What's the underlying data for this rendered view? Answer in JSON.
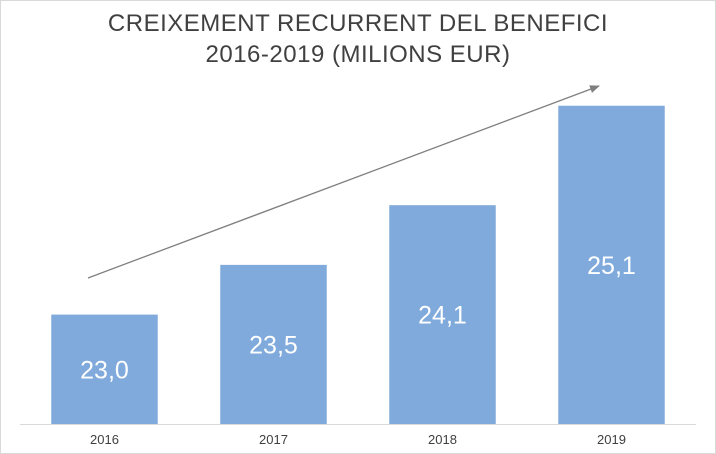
{
  "chart_data": {
    "type": "bar",
    "title_lines": [
      "CREIXEMENT RECURRENT DEL BENEFICI",
      "2016-2019 (MILIONS EUR)"
    ],
    "categories": [
      "2016",
      "2017",
      "2018",
      "2019"
    ],
    "values": [
      23.0,
      23.5,
      24.1,
      25.1
    ],
    "data_labels": [
      "23,0",
      "23,5",
      "24,1",
      "25,1"
    ],
    "xlabel": "",
    "ylabel": "",
    "ylim": [
      21.9,
      25.6
    ],
    "grid": false,
    "legend": "none",
    "bar_color": "#7faadb",
    "label_color": "#ffffff",
    "axis_text_color": "#404040",
    "trend_arrow_color": "#7f7f7f"
  }
}
